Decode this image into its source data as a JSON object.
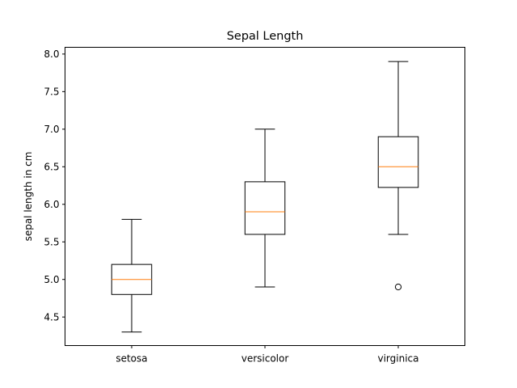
{
  "chart_data": {
    "type": "box",
    "title": "Sepal Length",
    "xlabel": "",
    "ylabel": "sepal length in cm",
    "ylim": [
      4.12,
      8.09
    ],
    "y_ticks": [
      "4.5",
      "5.0",
      "5.5",
      "6.0",
      "6.5",
      "7.0",
      "7.5",
      "8.0"
    ],
    "grid": false,
    "categories": [
      "setosa",
      "versicolor",
      "virginica"
    ],
    "boxes": [
      {
        "category": "setosa",
        "whisker_low": 4.3,
        "q1": 4.8,
        "median": 5.0,
        "q3": 5.2,
        "whisker_high": 5.8,
        "outliers": []
      },
      {
        "category": "versicolor",
        "whisker_low": 4.9,
        "q1": 5.6,
        "median": 5.9,
        "q3": 6.3,
        "whisker_high": 7.0,
        "outliers": []
      },
      {
        "category": "virginica",
        "whisker_low": 5.6,
        "q1": 6.225,
        "median": 6.5,
        "q3": 6.9,
        "whisker_high": 7.9,
        "outliers": [
          4.9
        ]
      }
    ],
    "colors": {
      "box": "#000000",
      "median": "#ff7f0e",
      "axes": "#000000",
      "background": "#ffffff"
    }
  }
}
